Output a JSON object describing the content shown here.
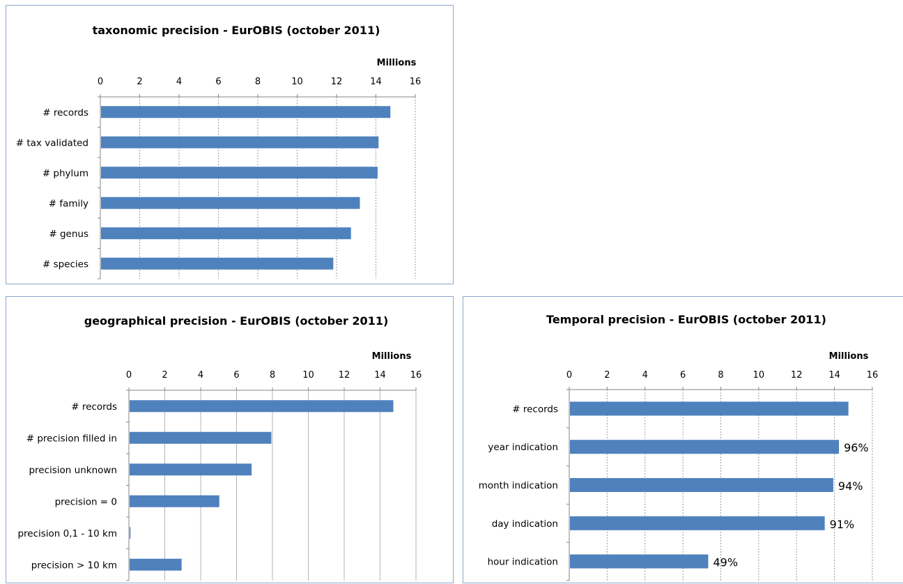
{
  "chart_data": [
    {
      "type": "bar",
      "orientation": "horizontal",
      "title": "taxonomic precision - EurOBIS (october 2011)",
      "axis_unit_label": "Millions",
      "xlim": [
        0,
        16
      ],
      "ticks": [
        0,
        2,
        4,
        6,
        8,
        10,
        12,
        14,
        16
      ],
      "grid": "vertical dashed",
      "categories": [
        "# records",
        "# tax validated",
        "# phylum",
        "# family",
        "# genus",
        "# species"
      ],
      "values": [
        14.7,
        14.1,
        14.05,
        13.15,
        12.7,
        11.8
      ],
      "bar_color": "#4f81bd"
    },
    {
      "type": "bar",
      "orientation": "horizontal",
      "title": "geographical precision - EurOBIS (october 2011)",
      "axis_unit_label": "Millions",
      "xlim": [
        0,
        16
      ],
      "ticks": [
        0,
        2,
        4,
        6,
        8,
        10,
        12,
        14,
        16
      ],
      "grid": "vertical solid",
      "categories": [
        "# records",
        "# precision filled in",
        "precision unknown",
        "precision = 0",
        "precision 0,1 - 10 km",
        "precision > 10 km"
      ],
      "values": [
        14.7,
        7.9,
        6.8,
        5.0,
        0.05,
        2.9
      ],
      "bar_color": "#4f81bd"
    },
    {
      "type": "bar",
      "orientation": "horizontal",
      "title": "Temporal precision - EurOBIS (october 2011)",
      "axis_unit_label": "Millions",
      "xlim": [
        0,
        16
      ],
      "ticks": [
        0,
        2,
        4,
        6,
        8,
        10,
        12,
        14,
        16
      ],
      "grid": "vertical dashed",
      "categories": [
        "# records",
        "year indication",
        "month indication",
        "day indication",
        "hour indication"
      ],
      "values": [
        14.7,
        14.2,
        13.9,
        13.45,
        7.3
      ],
      "data_labels": [
        "",
        "96%",
        "94%",
        "91%",
        "49%"
      ],
      "bar_color": "#4f81bd"
    }
  ]
}
